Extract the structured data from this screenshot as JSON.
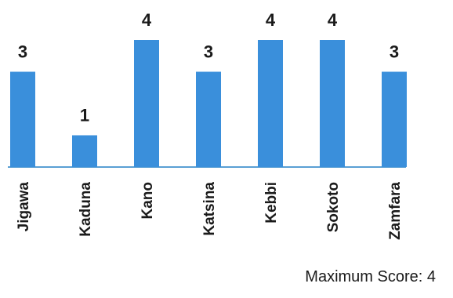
{
  "chart_data": {
    "type": "bar",
    "categories": [
      "Jigawa",
      "Kaduna",
      "Kano",
      "Katsina",
      "Kebbi",
      "Sokoto",
      "Zamfara"
    ],
    "values": [
      3,
      1,
      4,
      3,
      4,
      4,
      3
    ],
    "title": "",
    "xlabel": "",
    "ylabel": "",
    "ylim": [
      0,
      4
    ],
    "grid": false,
    "legend": "none",
    "colors": {
      "bar": "#3a8fdb",
      "baseline": "#5a9fd4",
      "text": "#1a1a1a"
    }
  },
  "footnote": {
    "text": "Maximum Score: 4"
  }
}
